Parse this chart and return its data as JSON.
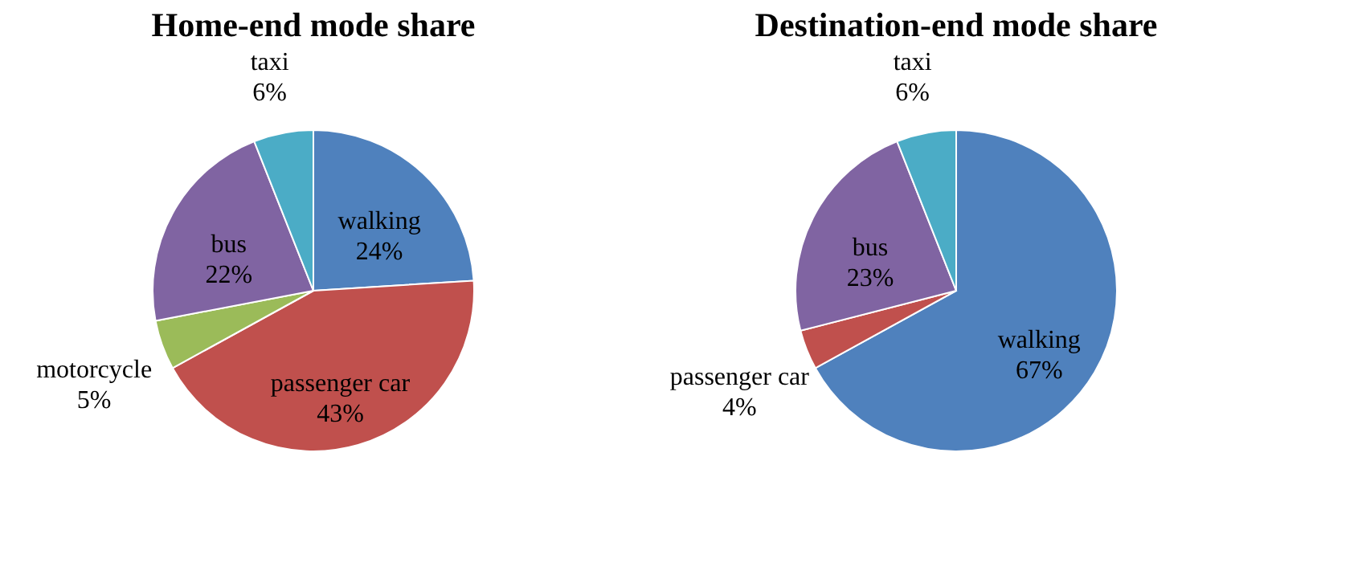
{
  "chart_data": [
    {
      "type": "pie",
      "title": "Home-end mode share",
      "categories": [
        "walking",
        "passenger car",
        "motorcycle",
        "bus",
        "taxi"
      ],
      "values": [
        24,
        43,
        5,
        22,
        6
      ],
      "value_labels": [
        "24%",
        "43%",
        "5%",
        "22%",
        "6%"
      ],
      "colors": [
        "#4f81bd",
        "#c0504d",
        "#9bbb59",
        "#8064a2",
        "#4bacc6"
      ],
      "legend": false
    },
    {
      "type": "pie",
      "title": "Destination-end mode share",
      "categories": [
        "walking",
        "passenger car",
        "bus",
        "taxi"
      ],
      "values": [
        67,
        4,
        23,
        6
      ],
      "value_labels": [
        "67%",
        "4%",
        "23%",
        "6%"
      ],
      "colors": [
        "#4f81bd",
        "#c0504d",
        "#8064a2",
        "#4bacc6"
      ],
      "legend": false
    }
  ]
}
